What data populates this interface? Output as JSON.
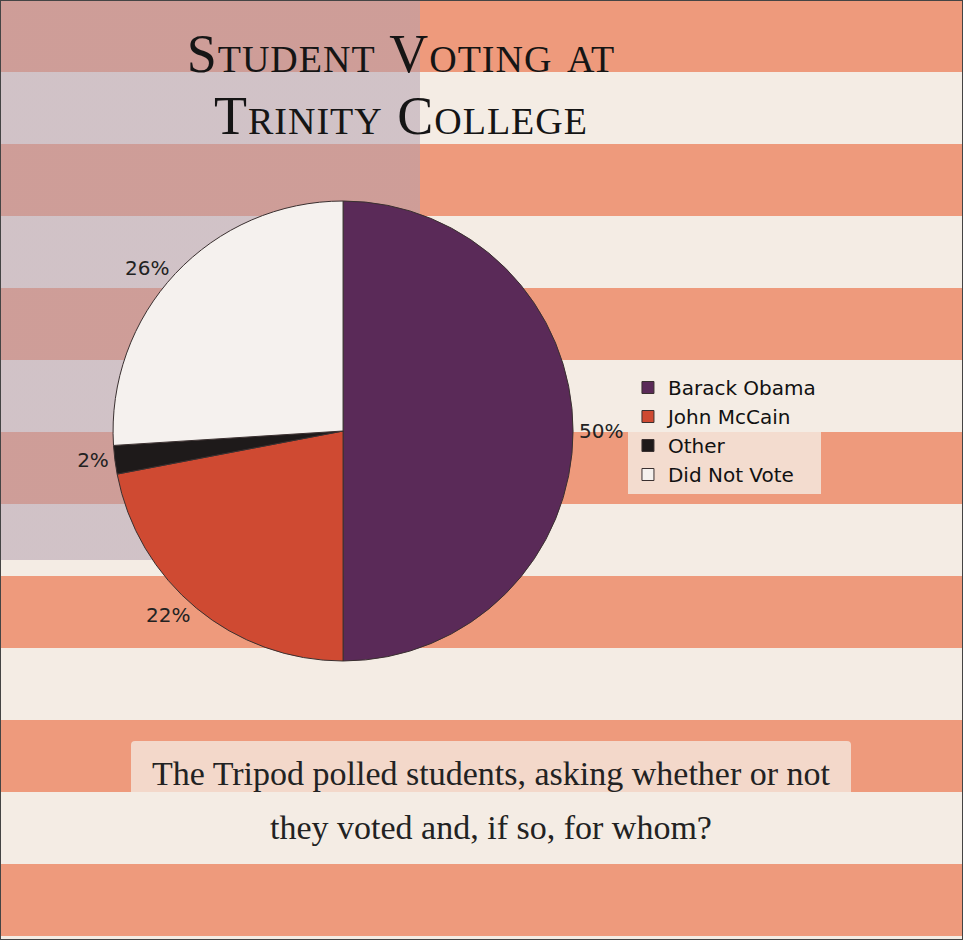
{
  "chart_data": {
    "type": "pie",
    "title": "Student Voting at Trinity College",
    "caption": "The Tripod polled students, asking whether or not they voted and, if so, for whom?",
    "categories": [
      "Barack Obama",
      "John McCain",
      "Other",
      "Did Not Vote"
    ],
    "values": [
      50,
      22,
      2,
      26
    ],
    "value_labels": [
      "50%",
      "22%",
      "2%",
      "26%"
    ],
    "colors": [
      "#5a2a58",
      "#cf4a32",
      "#1e1a1a",
      "#f5f1ee"
    ],
    "data_labels": true,
    "legend": "right"
  }
}
